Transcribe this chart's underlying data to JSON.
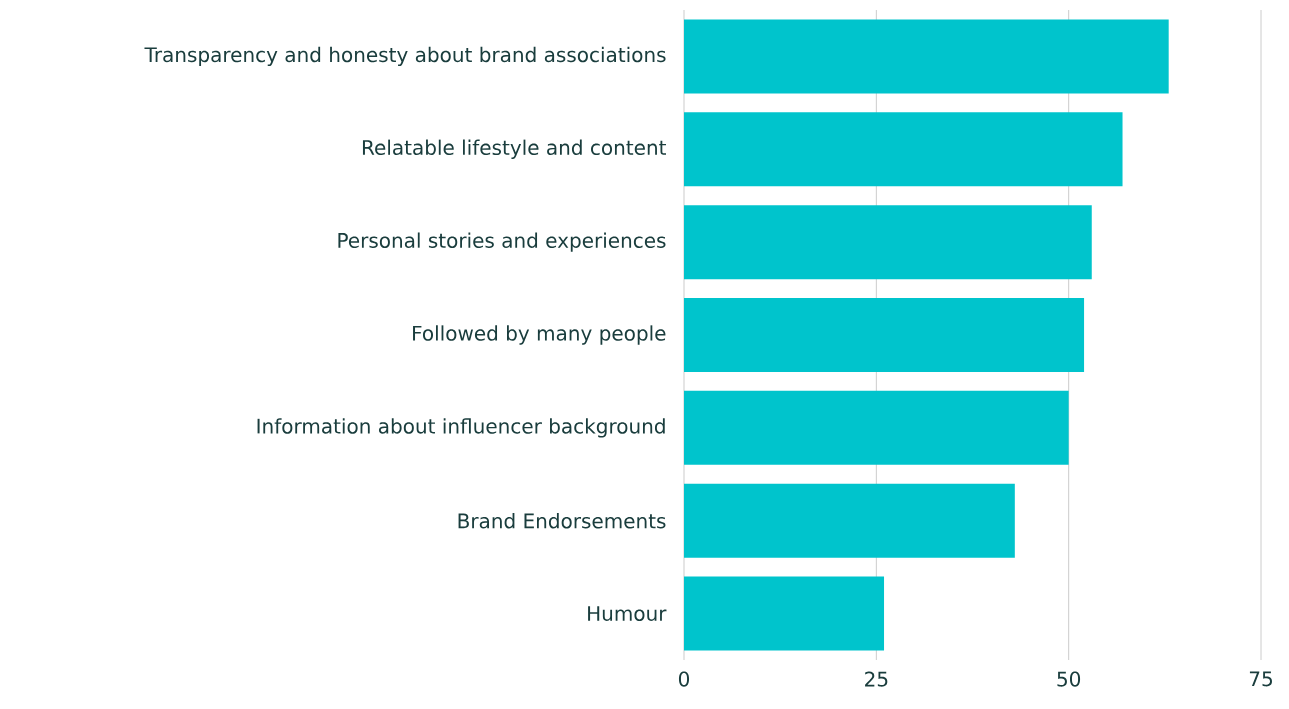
{
  "chart_data": {
    "type": "bar",
    "orientation": "horizontal",
    "categories": [
      "Transparency and honesty about brand associations",
      "Relatable lifestyle and content",
      "Personal stories and experiences",
      "Followed by many people",
      "Information about influencer background",
      "Brand Endorsements",
      "Humour"
    ],
    "values": [
      63,
      57,
      53,
      52,
      50,
      43,
      26
    ],
    "color": "#00c4cc",
    "xlim": [
      0,
      75
    ],
    "xticks": [
      0,
      25,
      50,
      75
    ],
    "grid": "x"
  }
}
